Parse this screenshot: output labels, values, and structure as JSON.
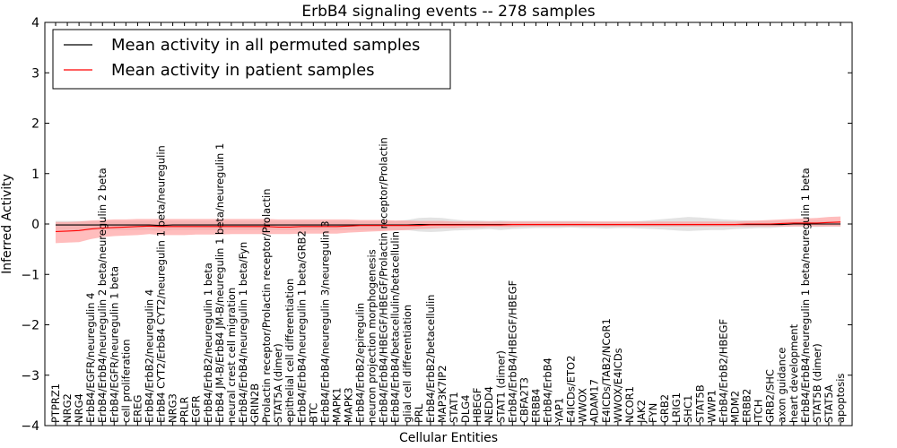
{
  "chart_data": {
    "type": "line",
    "title": "ErbB4 signaling events -- 278 samples",
    "xlabel": "Cellular Entities",
    "ylabel": "Inferred Activity",
    "ylim": [
      -4,
      4
    ],
    "yticks": [
      -4,
      -3,
      -2,
      -1,
      0,
      1,
      2,
      3,
      4
    ],
    "grid": false,
    "legend_position": "top-left",
    "categories": [
      "PTPRZ1",
      "NRG2",
      "NRG4",
      "ErbB4/EGFR/neuregulin 4",
      "ErbB4/ErbB4/neuregulin 2 beta/neuregulin 2 beta",
      "ErbB4/EGFR/neuregulin 1 beta",
      "cell proliferation",
      "EREG",
      "ErbB4/ErbB2/neuregulin 4",
      "ErbB4 CYT2/ErbB4 CYT2/neuregulin 1 beta/neuregulin",
      "NRG3",
      "PRLR",
      "EGFR",
      "ErbB4/ErbB2/neuregulin 1 beta",
      "ErbB4 JM-B/ErbB4 JM-B/neuregulin 1 beta/neuregulin 1",
      "neural crest cell migration",
      "ErbB4/ErbB4/neuregulin 1 beta/Fyn",
      "GRIN2B",
      "Prolactin receptor/Prolactin receptor/Prolactin",
      "STAT5A (dimer)",
      "epithelial cell differentiation",
      "ErbB4/ErbB4/neuregulin 1 beta/GRB2",
      "BTC",
      "ErbB4/ErbB4/neuregulin 3/neuregulin 3",
      "MAPK1",
      "MAPK3",
      "ErbB4/ErbB2/epiregulin",
      "neuron projection morphogenesis",
      "ErbB4/ErbB4/HBEGF/HBEGF/Prolactin receptor/Prolactin",
      "ErbB4/ErbB4/betacellulin/betacellulin",
      "glial cell differentiation",
      "PRL",
      "ErbB4/ErbB2/betacellulin",
      "MAP3K7IP2",
      "STAT1",
      "DLG4",
      "HBEGF",
      "NEDD4",
      "STAT1 (dimer)",
      "ErbB4/ErbB4/HBEGF/HBEGF",
      "CBFA2T3",
      "ERBB4",
      "ErbB4/ErbB4",
      "YAP1",
      "E4ICDs/ETO2",
      "WWOX",
      "ADAM17",
      "E4ICDs/TAB2/NCoR1",
      "WWOX/E4ICDs",
      "NCOR1",
      "JAK2",
      "FYN",
      "GRB2",
      "LRIG1",
      "SHC1",
      "STAT5B",
      "WWP1",
      "ErbB4/ErbB2/HBEGF",
      "MDM2",
      "ERBB2",
      "ITCH",
      "GRB2/SHC",
      "axon guidance",
      "heart development",
      "ErbB4/ErbB4/neuregulin 1 beta/neuregulin 1 beta",
      "STAT5B (dimer)",
      "STAT5A",
      "apoptosis"
    ],
    "series": [
      {
        "name": "Mean activity in all permuted samples",
        "color": "#000000",
        "band_color": "#cccccc",
        "values": [
          -0.02,
          -0.02,
          -0.02,
          -0.02,
          -0.02,
          -0.02,
          -0.02,
          -0.02,
          -0.02,
          -0.03,
          -0.02,
          -0.02,
          -0.02,
          -0.02,
          -0.02,
          -0.02,
          -0.02,
          -0.02,
          -0.02,
          -0.02,
          -0.02,
          -0.02,
          -0.02,
          -0.02,
          -0.02,
          -0.02,
          -0.02,
          -0.02,
          -0.02,
          -0.02,
          -0.02,
          -0.01,
          -0.01,
          -0.01,
          -0.01,
          -0.01,
          -0.01,
          -0.01,
          -0.01,
          -0.01,
          -0.01,
          -0.01,
          -0.01,
          -0.01,
          -0.01,
          -0.01,
          -0.01,
          -0.01,
          -0.01,
          -0.01,
          -0.01,
          -0.01,
          -0.01,
          -0.01,
          -0.01,
          -0.01,
          -0.01,
          -0.01,
          -0.01,
          -0.01,
          -0.01,
          -0.01,
          -0.01,
          0.0,
          0.0,
          0.0,
          0.0,
          0.0
        ],
        "lower": [
          -0.12,
          -0.12,
          -0.12,
          -0.12,
          -0.12,
          -0.12,
          -0.12,
          -0.12,
          -0.12,
          -0.14,
          -0.12,
          -0.12,
          -0.12,
          -0.12,
          -0.12,
          -0.12,
          -0.12,
          -0.12,
          -0.12,
          -0.12,
          -0.12,
          -0.12,
          -0.12,
          -0.12,
          -0.12,
          -0.12,
          -0.12,
          -0.12,
          -0.12,
          -0.12,
          -0.12,
          -0.15,
          -0.16,
          -0.15,
          -0.13,
          -0.12,
          -0.11,
          -0.1,
          -0.12,
          -0.1,
          -0.09,
          -0.08,
          -0.08,
          -0.08,
          -0.07,
          -0.08,
          -0.08,
          -0.09,
          -0.08,
          -0.08,
          -0.09,
          -0.1,
          -0.11,
          -0.13,
          -0.14,
          -0.13,
          -0.12,
          -0.12,
          -0.1,
          -0.09,
          -0.08,
          -0.08,
          -0.06,
          -0.05,
          -0.05,
          -0.06,
          -0.05,
          -0.05
        ],
        "upper": [
          0.06,
          0.06,
          0.06,
          0.06,
          0.06,
          0.06,
          0.06,
          0.06,
          0.06,
          0.07,
          0.06,
          0.06,
          0.06,
          0.06,
          0.06,
          0.06,
          0.06,
          0.06,
          0.06,
          0.06,
          0.06,
          0.06,
          0.06,
          0.06,
          0.06,
          0.06,
          0.06,
          0.06,
          0.06,
          0.06,
          0.08,
          0.12,
          0.13,
          0.12,
          0.09,
          0.07,
          0.07,
          0.06,
          0.07,
          0.06,
          0.06,
          0.06,
          0.06,
          0.06,
          0.06,
          0.06,
          0.05,
          0.05,
          0.05,
          0.05,
          0.06,
          0.08,
          0.1,
          0.12,
          0.14,
          0.13,
          0.11,
          0.09,
          0.08,
          0.07,
          0.06,
          0.06,
          0.06,
          0.06,
          0.06,
          0.07,
          0.06,
          0.06
        ]
      },
      {
        "name": "Mean activity in patient samples",
        "color": "#ff0000",
        "band_color": "#ff9999",
        "values": [
          -0.15,
          -0.14,
          -0.13,
          -0.1,
          -0.08,
          -0.07,
          -0.06,
          -0.05,
          -0.04,
          -0.05,
          -0.05,
          -0.05,
          -0.05,
          -0.05,
          -0.05,
          -0.05,
          -0.05,
          -0.05,
          -0.05,
          -0.06,
          -0.06,
          -0.05,
          -0.05,
          -0.05,
          -0.05,
          -0.04,
          -0.03,
          -0.03,
          -0.03,
          -0.03,
          -0.03,
          -0.03,
          -0.02,
          -0.02,
          -0.02,
          -0.02,
          -0.02,
          -0.02,
          -0.02,
          -0.01,
          -0.01,
          -0.01,
          -0.01,
          -0.01,
          -0.01,
          -0.01,
          -0.01,
          -0.01,
          -0.01,
          -0.01,
          -0.01,
          -0.01,
          -0.01,
          -0.01,
          -0.01,
          -0.01,
          -0.01,
          -0.01,
          -0.01,
          0.0,
          0.0,
          0.0,
          0.01,
          0.02,
          0.02,
          0.02,
          0.03,
          0.04
        ],
        "lower": [
          -0.38,
          -0.37,
          -0.36,
          -0.3,
          -0.26,
          -0.24,
          -0.23,
          -0.22,
          -0.2,
          -0.22,
          -0.22,
          -0.22,
          -0.21,
          -0.21,
          -0.21,
          -0.2,
          -0.2,
          -0.2,
          -0.2,
          -0.2,
          -0.2,
          -0.19,
          -0.19,
          -0.19,
          -0.19,
          -0.17,
          -0.16,
          -0.15,
          -0.14,
          -0.13,
          -0.12,
          -0.1,
          -0.09,
          -0.08,
          -0.08,
          -0.07,
          -0.07,
          -0.06,
          -0.06,
          -0.06,
          -0.05,
          -0.05,
          -0.05,
          -0.05,
          -0.05,
          -0.05,
          -0.05,
          -0.05,
          -0.05,
          -0.05,
          -0.05,
          -0.05,
          -0.05,
          -0.05,
          -0.05,
          -0.05,
          -0.05,
          -0.05,
          -0.05,
          -0.05,
          -0.05,
          -0.05,
          -0.05,
          -0.05,
          -0.05,
          -0.05,
          -0.05,
          -0.05
        ],
        "upper": [
          0.04,
          0.04,
          0.05,
          0.07,
          0.08,
          0.09,
          0.09,
          0.1,
          0.1,
          0.1,
          0.1,
          0.1,
          0.1,
          0.1,
          0.1,
          0.1,
          0.1,
          0.1,
          0.1,
          0.09,
          0.09,
          0.09,
          0.09,
          0.09,
          0.09,
          0.09,
          0.08,
          0.08,
          0.08,
          0.07,
          0.07,
          0.06,
          0.06,
          0.06,
          0.05,
          0.05,
          0.05,
          0.05,
          0.05,
          0.05,
          0.05,
          0.05,
          0.05,
          0.05,
          0.05,
          0.05,
          0.05,
          0.05,
          0.05,
          0.05,
          0.05,
          0.05,
          0.05,
          0.05,
          0.05,
          0.05,
          0.05,
          0.05,
          0.05,
          0.06,
          0.07,
          0.08,
          0.09,
          0.1,
          0.11,
          0.12,
          0.14,
          0.15
        ]
      }
    ]
  }
}
